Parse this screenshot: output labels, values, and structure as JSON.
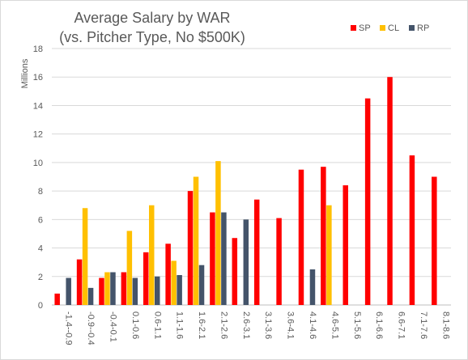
{
  "chart_data": {
    "type": "bar",
    "title": "Average Salary by WAR",
    "subtitle": "(vs. Pitcher Type, No $500K)",
    "ylabel": "Millions",
    "xlabel": "",
    "ylim": [
      0,
      18
    ],
    "yticks": [
      "0",
      "2",
      "4",
      "6",
      "8",
      "10",
      "12",
      "14",
      "16",
      "18"
    ],
    "grid": true,
    "legend_position": "top-right",
    "categories": [
      "-1.4--0.9",
      "-0.9--0.4",
      "-0.4-0.1",
      "0.1-0.6",
      "0.6-1.1",
      "1.1-1.6",
      "1.6-2.1",
      "2.1-2.6",
      "2.6-3.1",
      "3.1-3.6",
      "3.6-4.1",
      "4.1-4.6",
      "4.6-5.1",
      "5.1-5.6",
      "6.1-6.6",
      "6.6-7.1",
      "7.1-7.6",
      "8.1-8.6"
    ],
    "series": [
      {
        "name": "SP",
        "color": "#ff0000",
        "values": [
          0.8,
          3.2,
          1.9,
          2.3,
          3.7,
          4.3,
          8.0,
          6.5,
          4.7,
          7.4,
          6.1,
          9.5,
          9.7,
          8.4,
          14.5,
          16.0,
          10.5,
          9.0
        ]
      },
      {
        "name": "CL",
        "color": "#ffc000",
        "values": [
          null,
          6.8,
          2.3,
          5.2,
          7.0,
          3.1,
          9.0,
          10.1,
          null,
          null,
          null,
          null,
          7.0,
          null,
          null,
          null,
          null,
          null
        ]
      },
      {
        "name": "RP",
        "color": "#44546a",
        "values": [
          1.9,
          1.2,
          2.3,
          1.9,
          2.0,
          2.1,
          2.8,
          6.5,
          6.0,
          null,
          null,
          2.5,
          null,
          null,
          null,
          null,
          null,
          null
        ]
      }
    ]
  }
}
